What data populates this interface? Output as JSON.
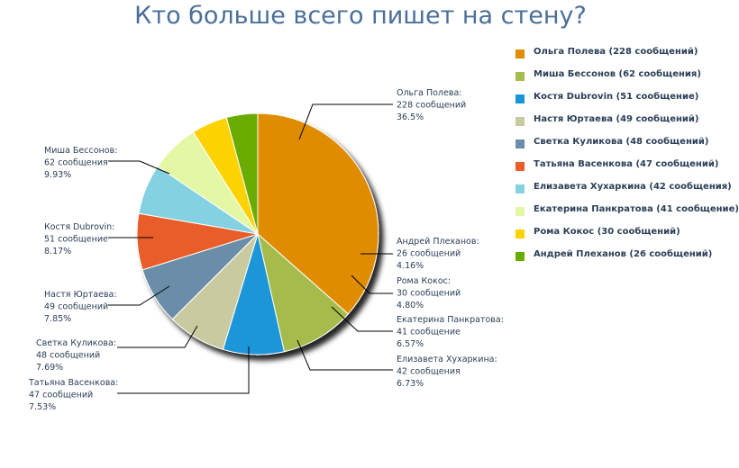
{
  "chart_data": {
    "type": "pie",
    "title": "Кто больше всего пишет на стену?",
    "slices": [
      {
        "name": "Ольга Полева",
        "value": 228,
        "percent": "36.5%",
        "count_text": "228 сообщений",
        "legend": "Ольга Полева (228 сообщений)",
        "color": "#e08c00"
      },
      {
        "name": "Миша Бессонов",
        "value": 62,
        "percent": "9.93%",
        "count_text": "62 сообщения",
        "legend": "Миша Бессонов (62 сообщения)",
        "color": "#a5bc4e"
      },
      {
        "name": "Костя Dubrovin",
        "value": 51,
        "percent": "8.17%",
        "count_text": "51 сообщение",
        "legend": "Костя Dubrovin (51 сообщение)",
        "color": "#1b95d9"
      },
      {
        "name": "Настя Юртаева",
        "value": 49,
        "percent": "7.85%",
        "count_text": "49 сообщений",
        "legend": "Настя Юртаева (49 сообщений)",
        "color": "#cacaa0"
      },
      {
        "name": "Светка Куликова",
        "value": 48,
        "percent": "7.69%",
        "count_text": "48 сообщений",
        "legend": "Светка Куликова (48 сообщений)",
        "color": "#6b8ea7"
      },
      {
        "name": "Татьяна Васенкова",
        "value": 47,
        "percent": "7.53%",
        "count_text": "47 сообщений",
        "legend": "Татьяна Васенкова (47 сообщений)",
        "color": "#e85d2a"
      },
      {
        "name": "Елизавета Хухаркина",
        "value": 42,
        "percent": "6.73%",
        "count_text": "42 сообщения",
        "legend": "Елизавета Хухаркина (42 сообщения)",
        "color": "#84d1e1"
      },
      {
        "name": "Екатерина Панкратова",
        "value": 41,
        "percent": "6.57%",
        "count_text": "41 сообщение",
        "legend": "Екатерина Панкратова (41 сообщение)",
        "color": "#e4f7a4"
      },
      {
        "name": "Рома Кокос",
        "value": 30,
        "percent": "4.80%",
        "count_text": "30 сообщений",
        "legend": "Рома Кокос (30 сообщений)",
        "color": "#fcd202"
      },
      {
        "name": "Андрей Плеханов",
        "value": 26,
        "percent": "4.16%",
        "count_text": "26 сообщений",
        "legend": "Андрей Плеханов (26 сообщений)",
        "color": "#6aab00"
      }
    ],
    "legend_position": "right"
  }
}
